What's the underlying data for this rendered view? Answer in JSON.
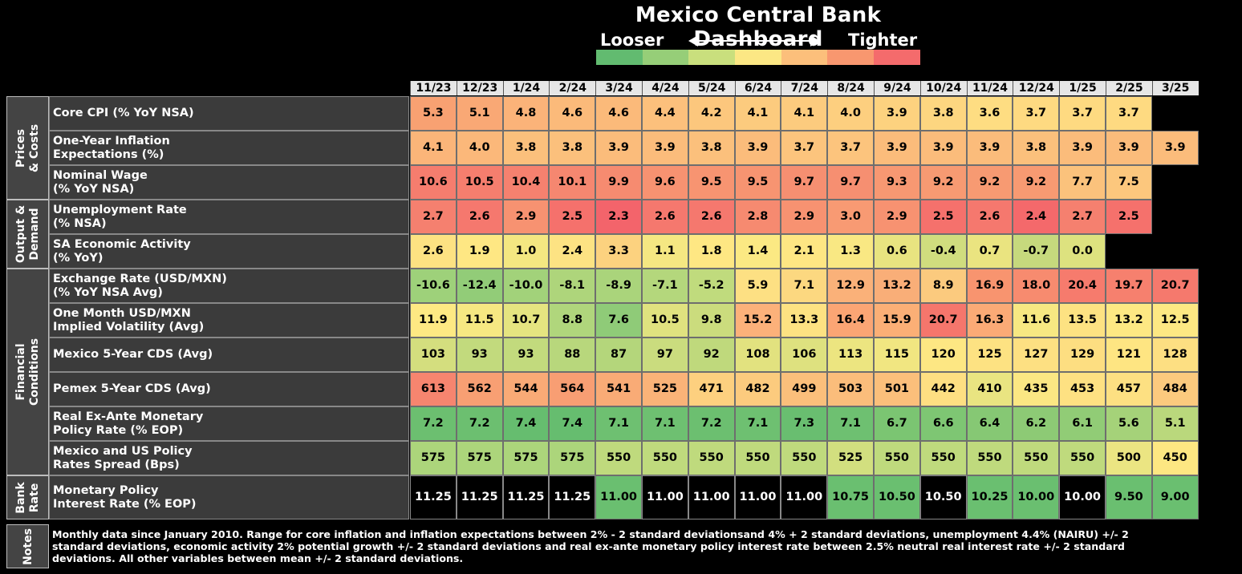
{
  "title": "Mexico Central Bank Dashboard",
  "legend": {
    "left_label": "Looser",
    "right_label": "Tighter",
    "scale_colors": [
      "#62bb70",
      "#96ce78",
      "#c9df7d",
      "#fce784",
      "#fcbf7b",
      "#f8976f",
      "#f46b6c"
    ]
  },
  "chart_data": {
    "type": "table",
    "title": "Mexico Central Bank Dashboard",
    "columns": [
      "11/23",
      "12/23",
      "1/24",
      "2/24",
      "3/24",
      "4/24",
      "5/24",
      "6/24",
      "7/24",
      "8/24",
      "9/24",
      "10/24",
      "11/24",
      "12/24",
      "1/25",
      "2/25",
      "3/25"
    ],
    "groups": [
      {
        "label": "Prices & Costs",
        "rows": 3
      },
      {
        "label": "Output & Demand",
        "rows": 2
      },
      {
        "label": "Financial Conditions",
        "rows": 6
      },
      {
        "label": "Bank Rate",
        "rows": 1
      }
    ],
    "rows": [
      {
        "label": [
          "Core CPI (% YoY NSA)"
        ],
        "values": [
          "5.3",
          "5.1",
          "4.8",
          "4.6",
          "4.6",
          "4.4",
          "4.2",
          "4.1",
          "4.1",
          "4.0",
          "3.9",
          "3.8",
          "3.6",
          "3.7",
          "3.7",
          "3.7",
          ""
        ],
        "colors": [
          "#f8a172",
          "#f9a875",
          "#fbb379",
          "#fbba7a",
          "#fbba7a",
          "#fcc07c",
          "#fcc77d",
          "#fccb7e",
          "#fccb7e",
          "#fdcf7f",
          "#fdd27f",
          "#fdd680",
          "#fedd82",
          "#feda81",
          "#feda81",
          "#feda81",
          "#000000"
        ]
      },
      {
        "label": [
          "One-Year Inflation",
          "Expectations (%)"
        ],
        "values": [
          "4.1",
          "4.0",
          "3.8",
          "3.8",
          "3.9",
          "3.9",
          "3.8",
          "3.9",
          "3.7",
          "3.7",
          "3.9",
          "3.9",
          "3.9",
          "3.8",
          "3.9",
          "3.9",
          "3.9"
        ],
        "colors": [
          "#fbb579",
          "#fbb87a",
          "#fbc07c",
          "#fbc07c",
          "#fbbc7b",
          "#fbbc7b",
          "#fbc07c",
          "#fbbc7b",
          "#fcc47d",
          "#fcc47d",
          "#fbbc7b",
          "#fbbc7b",
          "#fbbc7b",
          "#fbc07c",
          "#fbbc7b",
          "#fbbc7b",
          "#fbbc7b"
        ]
      },
      {
        "label": [
          "Nominal Wage",
          "(% YoY NSA)"
        ],
        "values": [
          "10.6",
          "10.5",
          "10.4",
          "10.1",
          "9.9",
          "9.6",
          "9.5",
          "9.5",
          "9.7",
          "9.7",
          "9.3",
          "9.2",
          "9.2",
          "9.2",
          "7.7",
          "7.5",
          ""
        ],
        "colors": [
          "#f57d6e",
          "#f57e6e",
          "#f5816f",
          "#f58770",
          "#f68b70",
          "#f79271",
          "#f79471",
          "#f79471",
          "#f68f71",
          "#f68f71",
          "#f79872",
          "#f79a72",
          "#f79a72",
          "#f79a72",
          "#fbc27c",
          "#fcc77d",
          "#000000"
        ]
      },
      {
        "label": [
          "Unemployment Rate",
          "(% NSA)"
        ],
        "values": [
          "2.7",
          "2.6",
          "2.9",
          "2.5",
          "2.3",
          "2.6",
          "2.6",
          "2.8",
          "2.9",
          "3.0",
          "2.9",
          "2.5",
          "2.6",
          "2.4",
          "2.7",
          "2.5",
          ""
        ],
        "colors": [
          "#f5806f",
          "#f5786e",
          "#f79271",
          "#f5716c",
          "#f3646b",
          "#f5786e",
          "#f5786e",
          "#f68a70",
          "#f79271",
          "#f89a73",
          "#f79271",
          "#f5716c",
          "#f5786e",
          "#f4696b",
          "#f5806f",
          "#f5716c",
          "#000000"
        ]
      },
      {
        "label": [
          "SA Economic Activity",
          "(% YoY)"
        ],
        "values": [
          "2.6",
          "1.9",
          "1.0",
          "2.4",
          "3.3",
          "1.1",
          "1.8",
          "1.4",
          "2.1",
          "1.3",
          "0.6",
          "-0.4",
          "0.7",
          "-0.7",
          "0.0",
          "",
          ""
        ],
        "colors": [
          "#fde282",
          "#fee783",
          "#f4e781",
          "#fde383",
          "#fcd27f",
          "#f5e782",
          "#fee783",
          "#fbe983",
          "#fee683",
          "#f9e883",
          "#e8e480",
          "#d0dd7e",
          "#eae480",
          "#c6d97d",
          "#dde27f",
          "#000000",
          "#000000"
        ]
      },
      {
        "label": [
          "Exchange Rate (USD/MXN)",
          "(% YoY NSA Avg)"
        ],
        "values": [
          "-10.6",
          "-12.4",
          "-10.0",
          "-8.1",
          "-8.9",
          "-7.1",
          "-5.2",
          "5.9",
          "7.1",
          "12.9",
          "13.2",
          "8.9",
          "16.9",
          "18.0",
          "20.4",
          "19.7",
          "20.7"
        ],
        "colors": [
          "#9ed17a",
          "#92cc78",
          "#a2d27a",
          "#aed57b",
          "#aad47b",
          "#b4d77c",
          "#c0db7d",
          "#fde083",
          "#fcd880",
          "#fab179",
          "#f9ae78",
          "#fbca7e",
          "#f8946f",
          "#f78b6f",
          "#f67b6d",
          "#f6806e",
          "#f5796d"
        ]
      },
      {
        "label": [
          "One Month USD/MXN",
          "Implied Volatility (Avg)"
        ],
        "values": [
          "11.9",
          "11.5",
          "10.7",
          "8.8",
          "7.6",
          "10.5",
          "9.8",
          "15.2",
          "13.3",
          "16.4",
          "15.9",
          "20.7",
          "16.3",
          "11.6",
          "13.5",
          "13.2",
          "12.5"
        ],
        "colors": [
          "#fee983",
          "#f6e882",
          "#e5e480",
          "#b0d67c",
          "#8fcb78",
          "#e0e27f",
          "#cbdc7d",
          "#fcb17a",
          "#fde282",
          "#fba574",
          "#fbaf76",
          "#f5766c",
          "#fbaa76",
          "#f7e882",
          "#fde282",
          "#fde883",
          "#fde883"
        ]
      },
      {
        "label": [
          "Mexico 5-Year CDS (Avg)"
        ],
        "values": [
          "103",
          "93",
          "93",
          "88",
          "87",
          "97",
          "92",
          "108",
          "106",
          "113",
          "115",
          "120",
          "125",
          "127",
          "129",
          "121",
          "128"
        ],
        "colors": [
          "#d4de7e",
          "#c2da7d",
          "#c2da7d",
          "#b8d77c",
          "#b4d67b",
          "#cadc7e",
          "#bfd97c",
          "#e2e27f",
          "#dee17f",
          "#ece580",
          "#f1e681",
          "#fde783",
          "#fde282",
          "#fde082",
          "#fdde81",
          "#fee582",
          "#fddf82"
        ]
      },
      {
        "label": [
          "Pemex 5-Year CDS (Avg)"
        ],
        "values": [
          "613",
          "562",
          "544",
          "564",
          "541",
          "525",
          "471",
          "482",
          "499",
          "503",
          "501",
          "442",
          "410",
          "435",
          "453",
          "457",
          "484"
        ],
        "colors": [
          "#f6856f",
          "#f89f73",
          "#f9aa76",
          "#f89e73",
          "#f9ab76",
          "#fab378",
          "#fdd07f",
          "#fccb7e",
          "#fbbf7b",
          "#fbbd7b",
          "#fbbf7b",
          "#fedf82",
          "#e9e481",
          "#fbe783",
          "#fee182",
          "#fde082",
          "#fcca7e"
        ]
      },
      {
        "label": [
          "Real Ex-Ante Monetary",
          "Policy Rate (% EOP)"
        ],
        "values": [
          "7.2",
          "7.2",
          "7.4",
          "7.4",
          "7.1",
          "7.1",
          "7.2",
          "7.1",
          "7.3",
          "7.1",
          "6.7",
          "6.6",
          "6.4",
          "6.2",
          "6.1",
          "5.6",
          "5.1"
        ],
        "colors": [
          "#6cbf70",
          "#6cbf70",
          "#66bd6f",
          "#66bd6f",
          "#6ec071",
          "#6ec071",
          "#6cbf70",
          "#6ec071",
          "#69be70",
          "#6ec071",
          "#7bc572",
          "#7ec673",
          "#86c874",
          "#8dca75",
          "#91cc76",
          "#a5d279",
          "#bad87c"
        ]
      },
      {
        "label": [
          "Mexico and US Policy",
          "Rates Spread (Bps)"
        ],
        "values": [
          "575",
          "575",
          "575",
          "575",
          "550",
          "550",
          "550",
          "550",
          "550",
          "525",
          "550",
          "550",
          "550",
          "550",
          "550",
          "500",
          "450"
        ],
        "colors": [
          "#acd57b",
          "#acd57b",
          "#acd57b",
          "#acd57b",
          "#bfda7d",
          "#bfda7d",
          "#bfda7d",
          "#bfda7d",
          "#bfda7d",
          "#d2df7f",
          "#bfda7d",
          "#bfda7d",
          "#bfda7d",
          "#bfda7d",
          "#bfda7d",
          "#ebe582",
          "#fde782"
        ]
      },
      {
        "label": [
          "Monetary Policy",
          "Interest Rate (% EOP)"
        ],
        "values": [
          "11.25",
          "11.25",
          "11.25",
          "11.25",
          "11.00",
          "11.00",
          "11.00",
          "11.00",
          "11.00",
          "10.75",
          "10.50",
          "10.50",
          "10.25",
          "10.00",
          "10.00",
          "9.50",
          "9.00"
        ],
        "colors": [
          "#000000",
          "#000000",
          "#000000",
          "#000000",
          "#6abf70",
          "#000000",
          "#000000",
          "#000000",
          "#000000",
          "#6abf70",
          "#6abf70",
          "#000000",
          "#6abf70",
          "#6abf70",
          "#000000",
          "#6abf70",
          "#6abf70"
        ]
      }
    ]
  },
  "notes": {
    "label": "Notes",
    "text": "Monthly data since January 2010. Range for core inflation and inflation expectations between 2% - 2 standard deviationsand 4% + 2 standard deviations, unemployment 4.4% (NAIRU) +/- 2 standard deviations,  economic activity 2% potential growth +/- 2 standard deviations and real ex-ante monetary policy interest rate between 2.5% neutral real interest rate +/- 2 standard deviations. All other variables between mean +/- 2 standard deviations."
  }
}
